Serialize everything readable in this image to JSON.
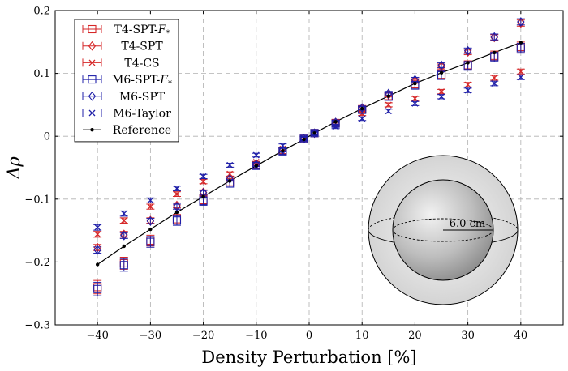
{
  "chart_data": {
    "type": "scatter",
    "xlabel": "Density Perturbation [%]",
    "ylabel": "Δρ",
    "xlim": [
      -48,
      48
    ],
    "ylim": [
      -0.3,
      0.2
    ],
    "xticks": [
      -40,
      -30,
      -20,
      -10,
      0,
      10,
      20,
      30,
      40
    ],
    "yticks": [
      -0.3,
      -0.2,
      -0.1,
      0,
      0.1,
      0.2
    ],
    "xtick_labels": [
      "−40",
      "−30",
      "−20",
      "−10",
      "0",
      "10",
      "20",
      "30",
      "40"
    ],
    "ytick_labels": [
      "−0.3",
      "−0.2",
      "−0.1",
      "0",
      "0.1",
      "0.2"
    ],
    "grid": true,
    "legend_position": "top-left",
    "x": [
      -40,
      -35,
      -30,
      -25,
      -20,
      -15,
      -10,
      -5,
      -1,
      1,
      5,
      10,
      15,
      20,
      25,
      30,
      35,
      40
    ],
    "series": [
      {
        "name": "T4-SPT-F*",
        "marker": "square",
        "color": "#d62728",
        "values": [
          -0.24,
          -0.202,
          -0.166,
          -0.132,
          -0.101,
          -0.073,
          -0.046,
          -0.023,
          -0.004,
          0.005,
          0.021,
          0.043,
          0.064,
          0.083,
          0.098,
          0.113,
          0.128,
          0.142
        ]
      },
      {
        "name": "T4-SPT",
        "marker": "diamond",
        "color": "#d62728",
        "values": [
          -0.177,
          -0.156,
          -0.134,
          -0.11,
          -0.089,
          -0.067,
          -0.044,
          -0.022,
          -0.004,
          0.005,
          0.022,
          0.044,
          0.066,
          0.088,
          0.111,
          0.134,
          0.157,
          0.18
        ]
      },
      {
        "name": "T4-CS",
        "marker": "x",
        "color": "#d62728",
        "values": [
          -0.156,
          -0.134,
          -0.112,
          -0.092,
          -0.072,
          -0.06,
          -0.041,
          -0.02,
          -0.004,
          0.005,
          0.02,
          0.036,
          0.05,
          0.06,
          0.071,
          0.082,
          0.093,
          0.103
        ]
      },
      {
        "name": "M6-SPT-F*",
        "marker": "square",
        "color": "#1f1fa8",
        "values": [
          -0.243,
          -0.205,
          -0.168,
          -0.134,
          -0.103,
          -0.075,
          -0.047,
          -0.024,
          -0.004,
          0.005,
          0.02,
          0.042,
          0.063,
          0.081,
          0.097,
          0.112,
          0.126,
          0.14
        ]
      },
      {
        "name": "M6-SPT",
        "marker": "diamond",
        "color": "#1f1fa8",
        "values": [
          -0.181,
          -0.158,
          -0.135,
          -0.112,
          -0.09,
          -0.068,
          -0.045,
          -0.022,
          -0.004,
          0.005,
          0.022,
          0.045,
          0.068,
          0.09,
          0.113,
          0.136,
          0.158,
          0.182
        ]
      },
      {
        "name": "M6-Taylor",
        "marker": "x",
        "color": "#1f1fa8",
        "values": [
          -0.145,
          -0.123,
          -0.102,
          -0.083,
          -0.064,
          -0.046,
          -0.03,
          -0.015,
          -0.003,
          0.004,
          0.015,
          0.028,
          0.04,
          0.052,
          0.063,
          0.073,
          0.084,
          0.094
        ]
      },
      {
        "name": "Reference",
        "marker": "dot-line",
        "color": "#000000",
        "values": [
          -0.204,
          -0.175,
          -0.148,
          -0.121,
          -0.096,
          -0.071,
          -0.047,
          -0.023,
          -0.005,
          0.005,
          0.023,
          0.044,
          0.064,
          0.084,
          0.101,
          0.117,
          0.133,
          0.149
        ]
      }
    ],
    "legend_labels": [
      "T4-SPT-",
      "T4-SPT",
      "T4-CS",
      "M6-SPT-",
      "M6-SPT",
      "M6-Taylor",
      "Reference"
    ],
    "legend_subscript_symbol": "F*",
    "inset": {
      "description_icon": "sphere-in-sphere",
      "radius_label": "6.0 cm"
    }
  }
}
